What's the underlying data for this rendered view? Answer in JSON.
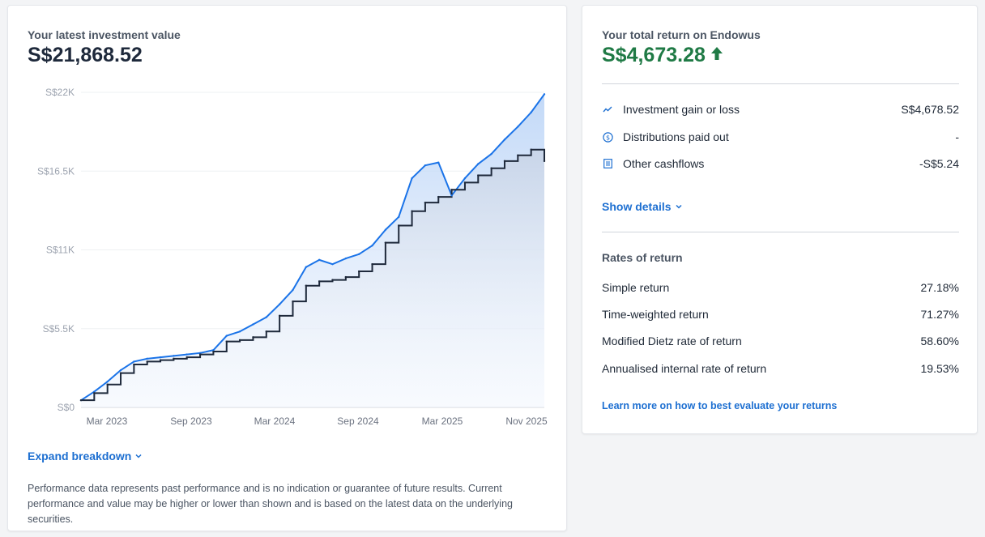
{
  "investment": {
    "label": "Your latest investment value",
    "value": "S$21,868.52"
  },
  "chart_data": {
    "type": "area",
    "y_ticks": [
      "S$22K",
      "S$16.5K",
      "S$11K",
      "S$5.5K",
      "S$0"
    ],
    "x_ticks": [
      "Mar 2023",
      "Sep 2023",
      "Mar 2024",
      "Sep 2024",
      "Mar 2025",
      "Nov 2025"
    ],
    "ylim": [
      0,
      22000
    ],
    "grid": true,
    "colors": {
      "value_line": "#1a73e8",
      "contribution_line": "#1e293b",
      "value_fill": "#cfe0f8",
      "contribution_fill": "#dbe4f0"
    },
    "series": [
      {
        "role": "investment value",
        "x": [
          "2022-12",
          "2023-01",
          "2023-02",
          "2023-03",
          "2023-04",
          "2023-05",
          "2023-06",
          "2023-07",
          "2023-08",
          "2023-09",
          "2023-10",
          "2023-11",
          "2023-12",
          "2024-01",
          "2024-02",
          "2024-03",
          "2024-04",
          "2024-05",
          "2024-06",
          "2024-07",
          "2024-08",
          "2024-09",
          "2024-10",
          "2024-11",
          "2024-12",
          "2025-01",
          "2025-02",
          "2025-03",
          "2025-04",
          "2025-05",
          "2025-06",
          "2025-07",
          "2025-08",
          "2025-09",
          "2025-10",
          "2025-11"
        ],
        "values": [
          500,
          1100,
          1800,
          2600,
          3200,
          3400,
          3500,
          3600,
          3700,
          3800,
          4000,
          5000,
          5300,
          5800,
          6300,
          7200,
          8200,
          9800,
          10300,
          10000,
          10400,
          10700,
          11300,
          12400,
          13300,
          16000,
          16900,
          17100,
          14800,
          16000,
          17000,
          17700,
          18700,
          19600,
          20600,
          21868
        ]
      },
      {
        "role": "net contributions",
        "x": [
          "2022-12",
          "2023-01",
          "2023-02",
          "2023-03",
          "2023-04",
          "2023-05",
          "2023-06",
          "2023-07",
          "2023-08",
          "2023-09",
          "2023-10",
          "2023-11",
          "2023-12",
          "2024-01",
          "2024-02",
          "2024-03",
          "2024-04",
          "2024-05",
          "2024-06",
          "2024-07",
          "2024-08",
          "2024-09",
          "2024-10",
          "2024-11",
          "2024-12",
          "2025-01",
          "2025-02",
          "2025-03",
          "2025-04",
          "2025-05",
          "2025-06",
          "2025-07",
          "2025-08",
          "2025-09",
          "2025-10",
          "2025-11"
        ],
        "values": [
          500,
          1000,
          1600,
          2400,
          3000,
          3200,
          3300,
          3400,
          3500,
          3700,
          3900,
          4600,
          4700,
          4900,
          5300,
          6400,
          7400,
          8500,
          8800,
          8900,
          9100,
          9500,
          10000,
          11500,
          12700,
          13700,
          14300,
          14700,
          15200,
          15700,
          16200,
          16700,
          17200,
          17600,
          18000,
          17200
        ]
      }
    ]
  },
  "expand": {
    "label": "Expand breakdown"
  },
  "disclaimer": "Performance data represents past performance and is no indication or guarantee of future results. Current performance and value may be higher or lower than shown and is based on the latest data on the underlying securities.",
  "total_return": {
    "label": "Your total return on Endowus",
    "value": "S$4,673.28",
    "direction_icon": "arrow-up-icon",
    "color": "#1f7a45"
  },
  "breakdown": [
    {
      "icon": "trend-line-icon",
      "label": "Investment gain or loss",
      "value": "S$4,678.52"
    },
    {
      "icon": "dollar-circle-icon",
      "label": "Distributions paid out",
      "value": "-"
    },
    {
      "icon": "document-list-icon",
      "label": "Other cashflows",
      "value": "-S$5.24"
    }
  ],
  "show_details": {
    "label": "Show details"
  },
  "rates": {
    "title": "Rates of return",
    "items": [
      {
        "label": "Simple return",
        "value": "27.18%"
      },
      {
        "label": "Time-weighted return",
        "value": "71.27%"
      },
      {
        "label": "Modified Dietz rate of return",
        "value": "58.60%"
      },
      {
        "label": "Annualised internal rate of return",
        "value": "19.53%"
      }
    ]
  },
  "learn_more": {
    "label": "Learn more on how to best evaluate your returns"
  },
  "accent_color": "#1d6fd1"
}
